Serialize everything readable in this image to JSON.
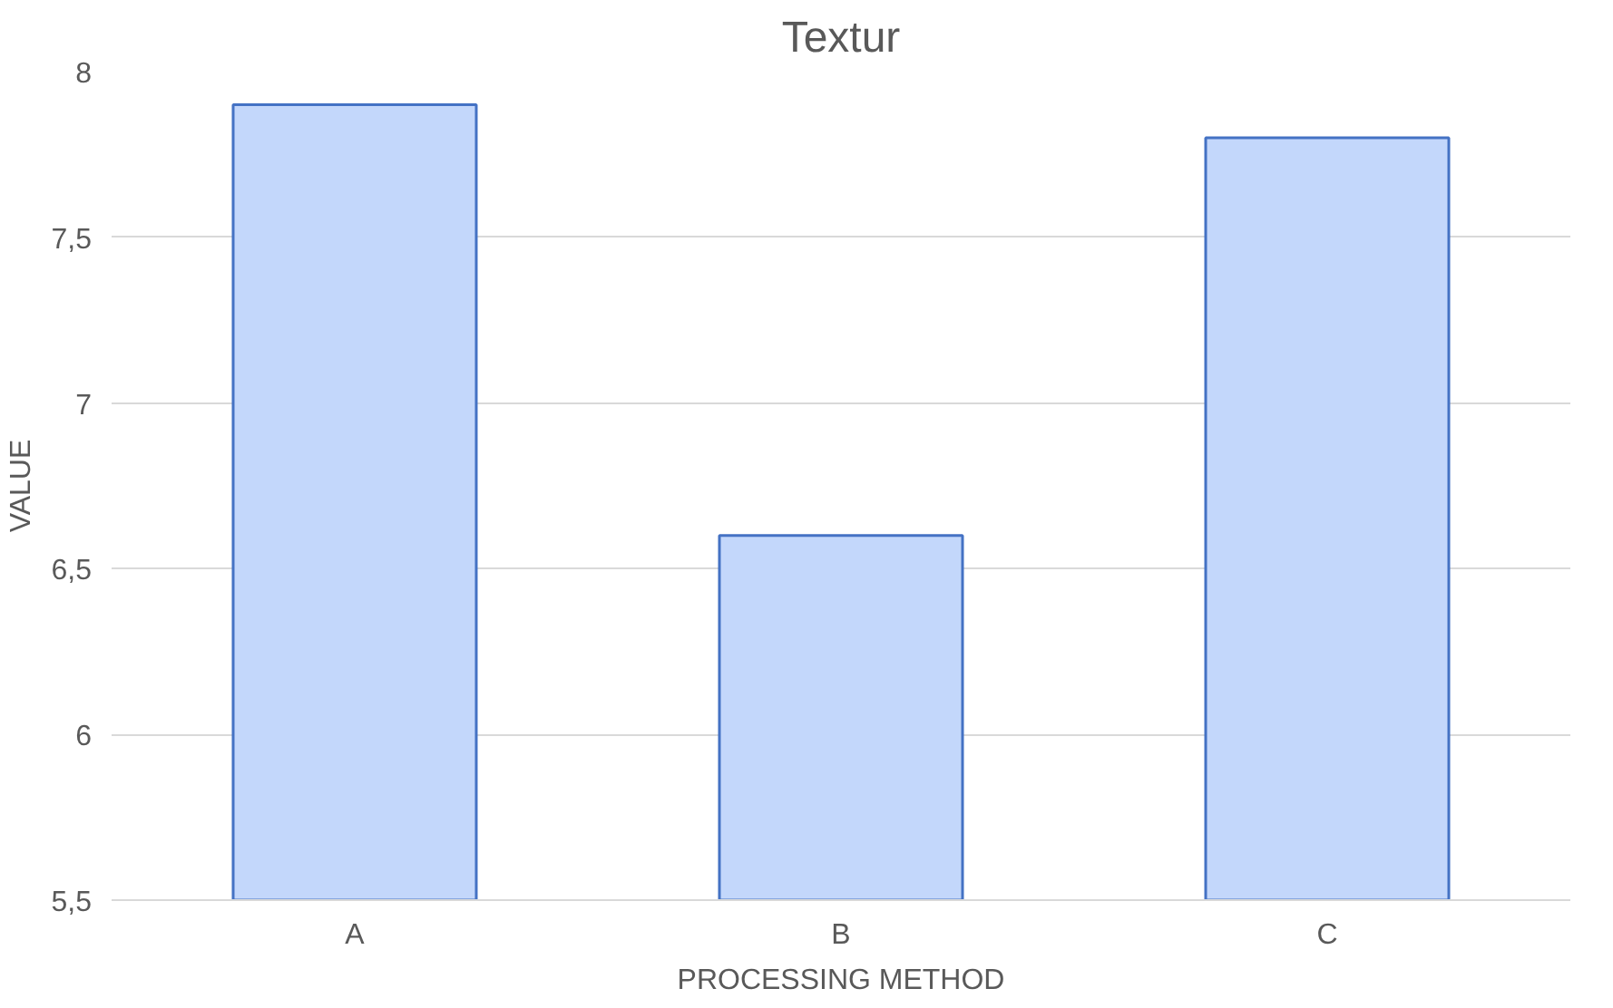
{
  "chart_data": {
    "type": "bar",
    "title": "Textur",
    "xlabel": "PROCESSING METHOD",
    "ylabel": "VALUE",
    "categories": [
      "A",
      "B",
      "C"
    ],
    "values": [
      7.9,
      6.6,
      7.8
    ],
    "color": "#c3d7fb",
    "ylim": [
      5.5,
      8
    ],
    "yticks": [
      {
        "value": 5.5,
        "label": "5,5"
      },
      6,
      {
        "value": 6.5,
        "label": "6,5"
      },
      7,
      {
        "value": 7.5,
        "label": "7,5"
      },
      8
    ],
    "grid": "y"
  }
}
